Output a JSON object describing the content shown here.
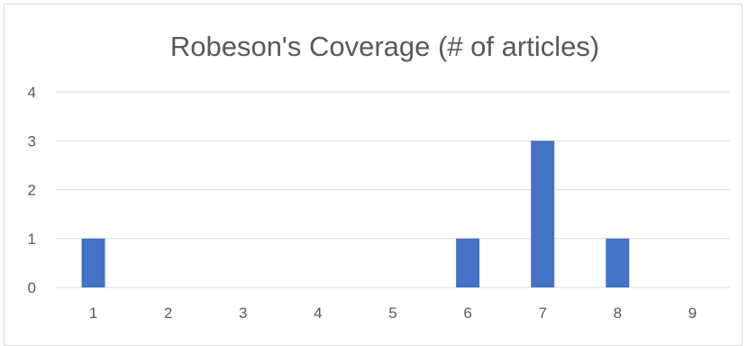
{
  "chart_data": {
    "type": "bar",
    "title": "Robeson's Coverage (# of articles)",
    "xlabel": "",
    "ylabel": "",
    "categories": [
      "1",
      "2",
      "3",
      "4",
      "5",
      "6",
      "7",
      "8",
      "9"
    ],
    "values": [
      1,
      0,
      0,
      0,
      0,
      1,
      3,
      1,
      0
    ],
    "ylim": [
      0,
      4
    ],
    "yticks": [
      "0",
      "1",
      "2",
      "3",
      "4"
    ],
    "grid": true,
    "legend": "none",
    "bar_color": "#4472c4",
    "gridline_color": "#d9d9d9",
    "text_color": "#595959"
  }
}
